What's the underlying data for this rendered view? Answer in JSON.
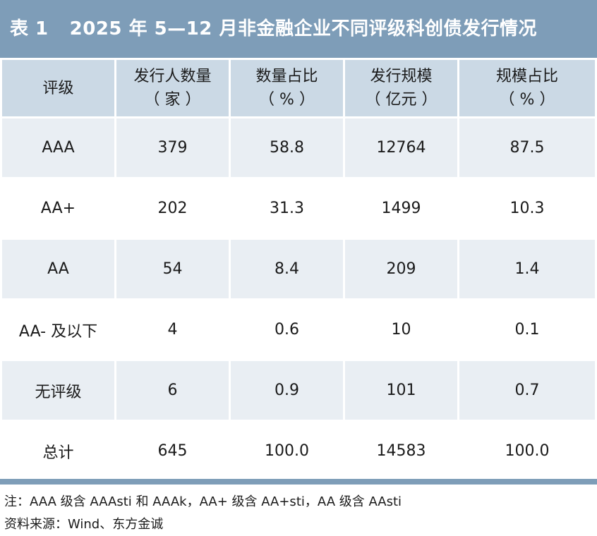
{
  "title": {
    "number": "表 1",
    "text": "2025 年 5—12 月非金融企业不同评级科创债发行情况"
  },
  "table": {
    "headers": [
      {
        "line1": "评级",
        "line2": ""
      },
      {
        "line1": "发行人数量",
        "line2": "（ 家 ）"
      },
      {
        "line1": "数量占比",
        "line2": "（ % ）"
      },
      {
        "line1": "发行规模",
        "line2": "（ 亿元 ）"
      },
      {
        "line1": "规模占比",
        "line2": "（ % ）"
      }
    ],
    "rows": [
      [
        "AAA",
        "379",
        "58.8",
        "12764",
        "87.5"
      ],
      [
        "AA+",
        "202",
        "31.3",
        "1499",
        "10.3"
      ],
      [
        "AA",
        "54",
        "8.4",
        "209",
        "1.4"
      ],
      [
        "AA- 及以下",
        "4",
        "0.6",
        "10",
        "0.1"
      ],
      [
        "无评级",
        "6",
        "0.9",
        "101",
        "0.7"
      ],
      [
        "总计",
        "645",
        "100.0",
        "14583",
        "100.0"
      ]
    ]
  },
  "notes": {
    "note": "注：AAA 级含 AAAsti 和 AAAk，AA+ 级含 AA+sti，AA 级含 AAsti",
    "source": "资料来源：Wind、东方金诚"
  },
  "colors": {
    "title_bar": "#7e9db8",
    "header_bg": "#cbd9e5",
    "row_shade": "#e9eef3"
  }
}
